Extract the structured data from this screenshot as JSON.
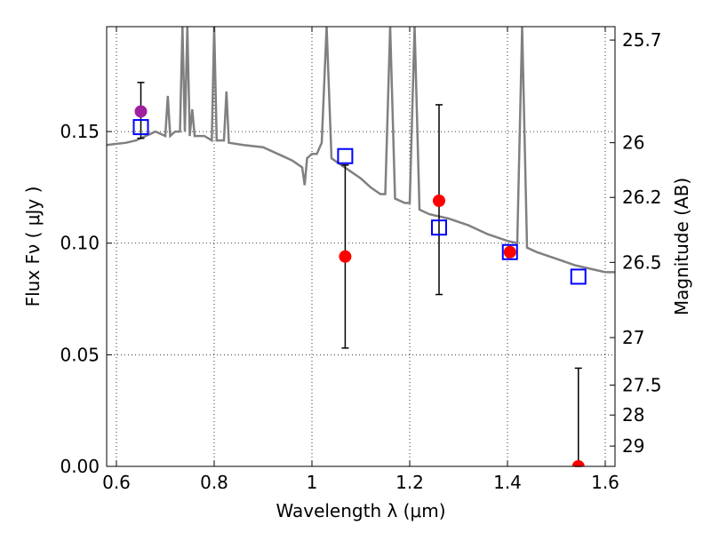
{
  "chart_data": {
    "type": "scatter",
    "title": "",
    "xlabel": "Wavelength  λ (μm)",
    "ylabel": "Flux  Fν  ( μJy )",
    "y2label": "Magnitude (AB)",
    "xlim": [
      0.58,
      1.62
    ],
    "ylim": [
      0.0,
      0.197
    ],
    "grid": true,
    "xticks": [
      0.6,
      0.8,
      1.0,
      1.2,
      1.4,
      1.6
    ],
    "xtick_labels": [
      "0.6",
      "0.8",
      "1",
      "1.2",
      "1.4",
      "1.6"
    ],
    "yticks": [
      0.0,
      0.05,
      0.1,
      0.15
    ],
    "ytick_labels": [
      "0.00",
      "0.05",
      "0.10",
      "0.15"
    ],
    "y2ticks": [
      {
        "label": "25.7",
        "flux": 0.191
      },
      {
        "label": "26",
        "flux": 0.145
      },
      {
        "label": "26.2",
        "flux": 0.1205
      },
      {
        "label": "26.5",
        "flux": 0.0914
      },
      {
        "label": "27",
        "flux": 0.0577
      },
      {
        "label": "27.5",
        "flux": 0.0364
      },
      {
        "label": "28",
        "flux": 0.023
      },
      {
        "label": "29",
        "flux": 0.0091
      }
    ],
    "series": [
      {
        "kind": "model-spectrum",
        "color": "#808080",
        "points": [
          [
            0.58,
            0.144
          ],
          [
            0.62,
            0.145
          ],
          [
            0.64,
            0.146
          ],
          [
            0.66,
            0.148
          ],
          [
            0.68,
            0.15
          ],
          [
            0.7,
            0.148
          ],
          [
            0.705,
            0.166
          ],
          [
            0.71,
            0.148
          ],
          [
            0.72,
            0.15
          ],
          [
            0.73,
            0.15
          ],
          [
            0.735,
            0.197
          ],
          [
            0.74,
            0.15
          ],
          [
            0.745,
            0.197
          ],
          [
            0.75,
            0.148
          ],
          [
            0.755,
            0.16
          ],
          [
            0.76,
            0.148
          ],
          [
            0.78,
            0.148
          ],
          [
            0.795,
            0.146
          ],
          [
            0.8,
            0.197
          ],
          [
            0.805,
            0.146
          ],
          [
            0.82,
            0.146
          ],
          [
            0.825,
            0.168
          ],
          [
            0.83,
            0.145
          ],
          [
            0.86,
            0.144
          ],
          [
            0.9,
            0.143
          ],
          [
            0.94,
            0.139
          ],
          [
            0.96,
            0.137
          ],
          [
            0.98,
            0.134
          ],
          [
            0.985,
            0.126
          ],
          [
            0.99,
            0.138
          ],
          [
            1.0,
            0.14
          ],
          [
            1.01,
            0.14
          ],
          [
            1.02,
            0.145
          ],
          [
            1.03,
            0.197
          ],
          [
            1.04,
            0.138
          ],
          [
            1.06,
            0.135
          ],
          [
            1.08,
            0.132
          ],
          [
            1.1,
            0.129
          ],
          [
            1.12,
            0.125
          ],
          [
            1.14,
            0.122
          ],
          [
            1.15,
            0.122
          ],
          [
            1.16,
            0.197
          ],
          [
            1.17,
            0.12
          ],
          [
            1.19,
            0.118
          ],
          [
            1.2,
            0.118
          ],
          [
            1.21,
            0.197
          ],
          [
            1.22,
            0.115
          ],
          [
            1.24,
            0.113
          ],
          [
            1.28,
            0.111
          ],
          [
            1.32,
            0.108
          ],
          [
            1.36,
            0.104
          ],
          [
            1.4,
            0.101
          ],
          [
            1.42,
            0.1
          ],
          [
            1.43,
            0.197
          ],
          [
            1.44,
            0.098
          ],
          [
            1.46,
            0.096
          ],
          [
            1.5,
            0.093
          ],
          [
            1.54,
            0.09
          ],
          [
            1.58,
            0.088
          ],
          [
            1.6,
            0.087
          ],
          [
            1.62,
            0.087
          ]
        ]
      },
      {
        "kind": "observed",
        "marker": "circle",
        "color": "#ff0000",
        "points": [
          {
            "x": 0.65,
            "y": 0.159,
            "yerr": [
              0.147,
              0.172
            ],
            "color": "#a020a0"
          },
          {
            "x": 1.068,
            "y": 0.094,
            "yerr": [
              0.053,
              0.135
            ]
          },
          {
            "x": 1.26,
            "y": 0.119,
            "yerr": [
              0.077,
              0.162
            ]
          },
          {
            "x": 1.405,
            "y": 0.096
          },
          {
            "x": 1.545,
            "y": 0.0,
            "yerr": [
              0.0,
              0.044
            ]
          }
        ]
      },
      {
        "kind": "model-photometry",
        "marker": "open-square",
        "color": "#0000ff",
        "points": [
          {
            "x": 0.65,
            "y": 0.152
          },
          {
            "x": 1.068,
            "y": 0.139
          },
          {
            "x": 1.26,
            "y": 0.107
          },
          {
            "x": 1.405,
            "y": 0.096
          },
          {
            "x": 1.545,
            "y": 0.085
          }
        ]
      }
    ]
  }
}
